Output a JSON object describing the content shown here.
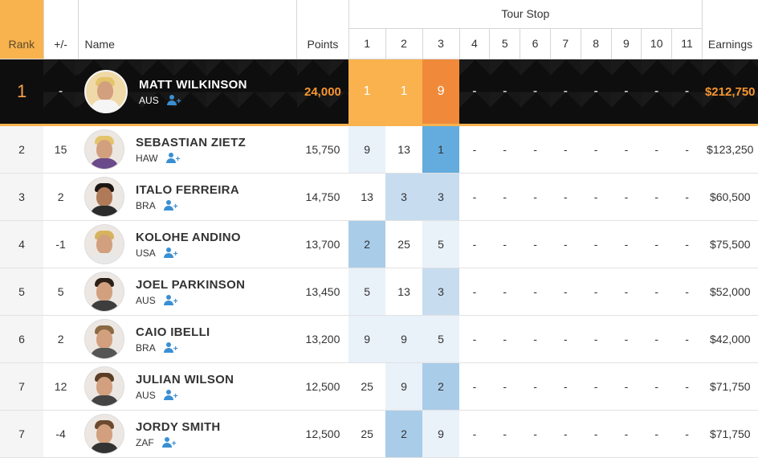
{
  "headers": {
    "rank": "Rank",
    "change": "+/-",
    "name": "Name",
    "points": "Points",
    "tour_stop": "Tour Stop",
    "stops": [
      "1",
      "2",
      "3",
      "4",
      "5",
      "6",
      "7",
      "8",
      "9",
      "10",
      "11"
    ],
    "earnings": "Earnings"
  },
  "leader": {
    "rank": "1",
    "change": "-",
    "name": "MATT WILKINSON",
    "country": "AUS",
    "points": "24,000",
    "stops": [
      "1",
      "1",
      "9",
      "-",
      "-",
      "-",
      "-",
      "-",
      "-",
      "-",
      "-"
    ],
    "earnings": "$212,750"
  },
  "rows": [
    {
      "rank": "2",
      "change": "15",
      "name": "SEBASTIAN ZIETZ",
      "country": "HAW",
      "points": "15,750",
      "stops": [
        "9",
        "13",
        "1",
        "-",
        "-",
        "-",
        "-",
        "-",
        "-",
        "-",
        "-"
      ],
      "earnings": "$123,250"
    },
    {
      "rank": "3",
      "change": "2",
      "name": "ITALO FERREIRA",
      "country": "BRA",
      "points": "14,750",
      "stops": [
        "13",
        "3",
        "3",
        "-",
        "-",
        "-",
        "-",
        "-",
        "-",
        "-",
        "-"
      ],
      "earnings": "$60,500"
    },
    {
      "rank": "4",
      "change": "-1",
      "name": "KOLOHE ANDINO",
      "country": "USA",
      "points": "13,700",
      "stops": [
        "2",
        "25",
        "5",
        "-",
        "-",
        "-",
        "-",
        "-",
        "-",
        "-",
        "-"
      ],
      "earnings": "$75,500"
    },
    {
      "rank": "5",
      "change": "5",
      "name": "JOEL PARKINSON",
      "country": "AUS",
      "points": "13,450",
      "stops": [
        "5",
        "13",
        "3",
        "-",
        "-",
        "-",
        "-",
        "-",
        "-",
        "-",
        "-"
      ],
      "earnings": "$52,000"
    },
    {
      "rank": "6",
      "change": "2",
      "name": "CAIO IBELLI",
      "country": "BRA",
      "points": "13,200",
      "stops": [
        "9",
        "9",
        "5",
        "-",
        "-",
        "-",
        "-",
        "-",
        "-",
        "-",
        "-"
      ],
      "earnings": "$42,000"
    },
    {
      "rank": "7",
      "change": "12",
      "name": "JULIAN WILSON",
      "country": "AUS",
      "points": "12,500",
      "stops": [
        "25",
        "9",
        "2",
        "-",
        "-",
        "-",
        "-",
        "-",
        "-",
        "-",
        "-"
      ],
      "earnings": "$71,750"
    },
    {
      "rank": "7",
      "change": "-4",
      "name": "JORDY SMITH",
      "country": "ZAF",
      "points": "12,500",
      "stops": [
        "25",
        "2",
        "9",
        "-",
        "-",
        "-",
        "-",
        "-",
        "-",
        "-",
        "-"
      ],
      "earnings": "$71,750"
    }
  ]
}
